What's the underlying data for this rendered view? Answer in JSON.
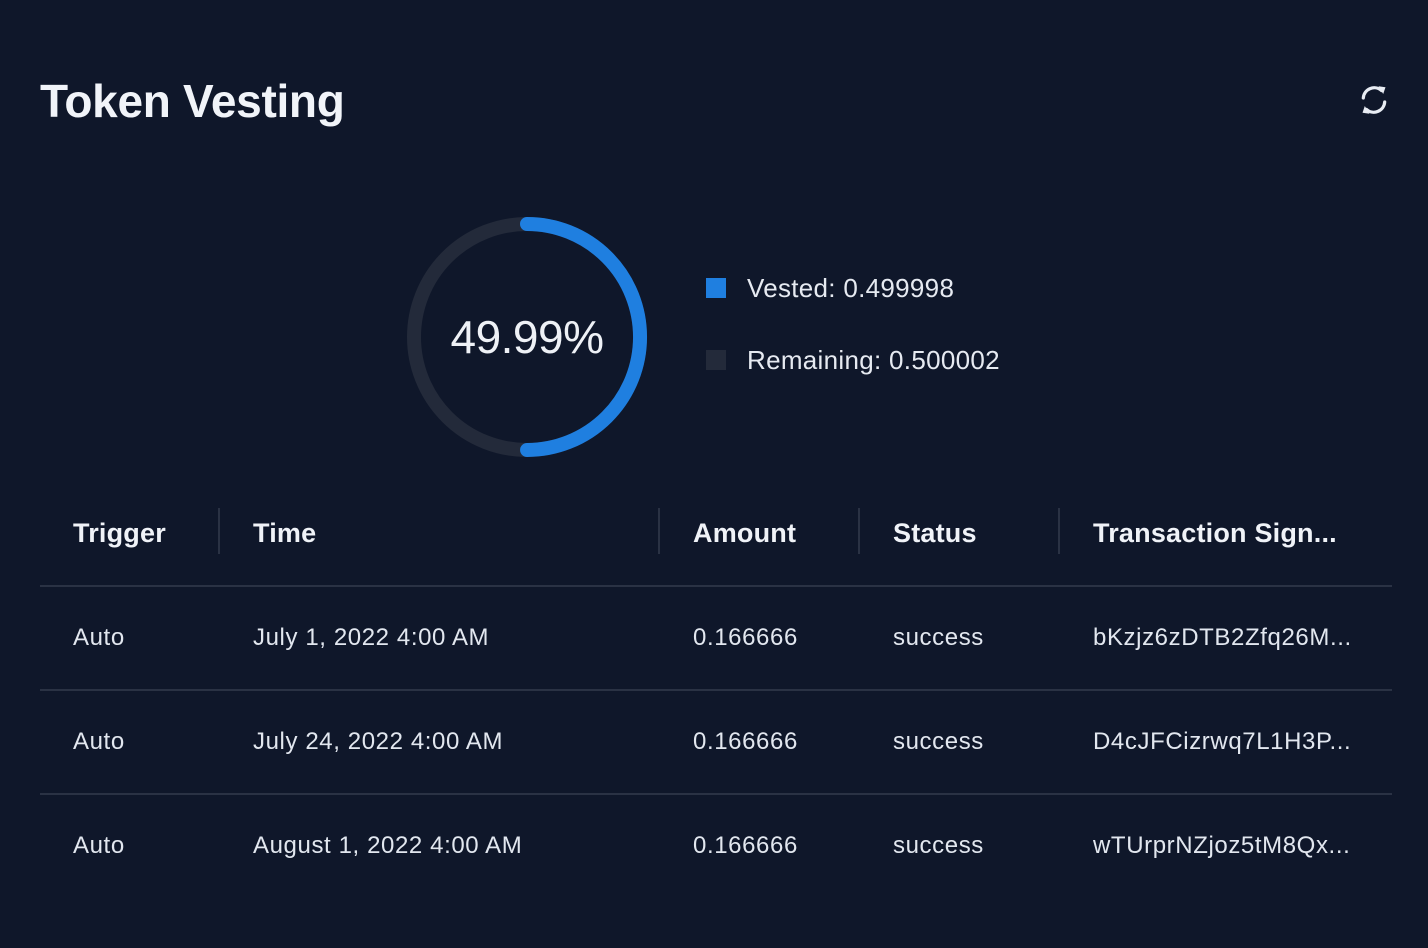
{
  "header": {
    "title": "Token Vesting",
    "refresh_icon": "refresh-icon"
  },
  "summary": {
    "percent_label": "49.99%",
    "vested_fraction": 0.4999,
    "colors": {
      "vested": "#1f7fe0",
      "remaining": "#232a3a",
      "background": "#0f172a"
    },
    "legend": [
      {
        "label": "Vested: 0.499998",
        "color": "#1f7fe0"
      },
      {
        "label": "Remaining: 0.500002",
        "color": "#232a3a"
      }
    ]
  },
  "table": {
    "columns": [
      "Trigger",
      "Time",
      "Amount",
      "Status",
      "Transaction Sign..."
    ],
    "rows": [
      [
        "Auto",
        "July 1, 2022 4:00 AM",
        "0.166666",
        "success",
        "bKzjz6zDTB2Zfq26M..."
      ],
      [
        "Auto",
        "July 24, 2022 4:00 AM",
        "0.166666",
        "success",
        "D4cJFCizrwq7L1H3P..."
      ],
      [
        "Auto",
        "August 1, 2022 4:00 AM",
        "0.166666",
        "success",
        "wTUrprNZjoz5tM8Qx..."
      ]
    ]
  }
}
